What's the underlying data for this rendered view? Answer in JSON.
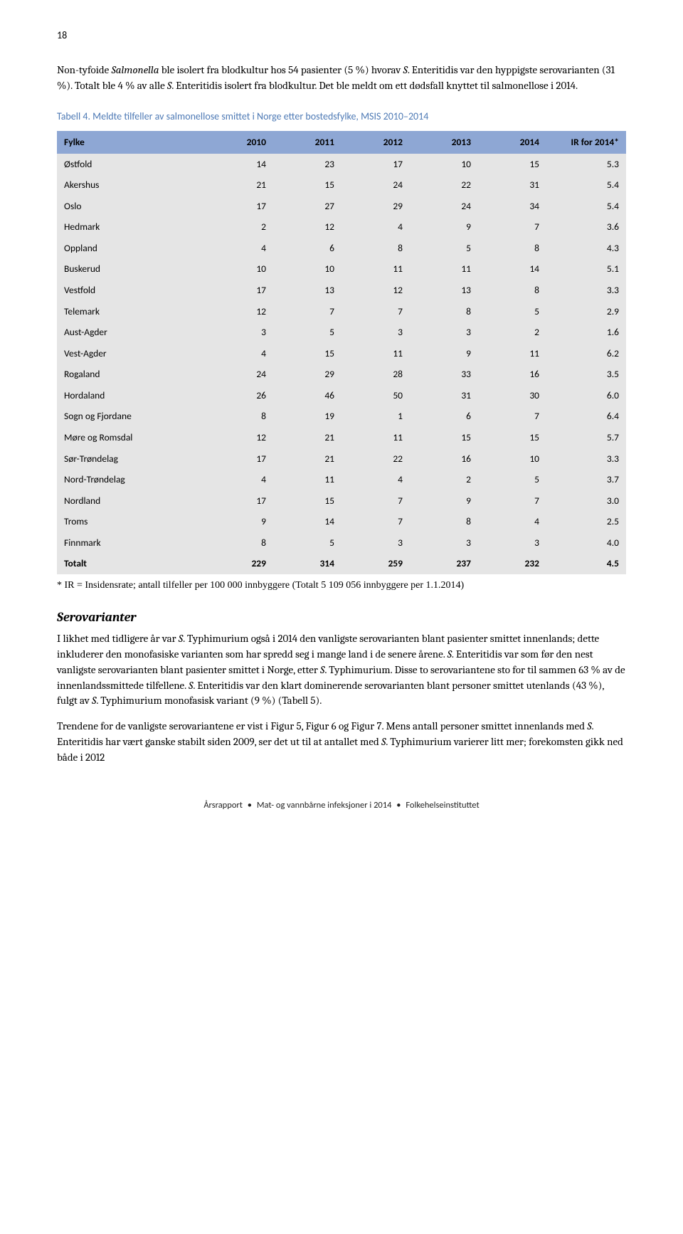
{
  "page_number": "18",
  "intro_html": "Non-tyfoide <i>Salmonella</i> ble isolert fra blodkultur hos 54 pasienter (5 %) hvorav <i>S</i>. Enteritidis var den hyppigste serovarianten (31 %). Totalt ble 4 % av alle <i>S</i>. Enteritidis isolert fra blodkultur. Det ble meldt om ett dødsfall knyttet til salmonellose i 2014.",
  "table_caption": "Tabell 4. Meldte tilfeller av salmonellose smittet i Norge etter bostedsfylke, MSIS 2010–2014",
  "table": {
    "columns": [
      "Fylke",
      "2010",
      "2011",
      "2012",
      "2013",
      "2014",
      "IR for 2014*"
    ],
    "rows": [
      [
        "Østfold",
        "14",
        "23",
        "17",
        "10",
        "15",
        "5.3"
      ],
      [
        "Akershus",
        "21",
        "15",
        "24",
        "22",
        "31",
        "5.4"
      ],
      [
        "Oslo",
        "17",
        "27",
        "29",
        "24",
        "34",
        "5.4"
      ],
      [
        "Hedmark",
        "2",
        "12",
        "4",
        "9",
        "7",
        "3.6"
      ],
      [
        "Oppland",
        "4",
        "6",
        "8",
        "5",
        "8",
        "4.3"
      ],
      [
        "Buskerud",
        "10",
        "10",
        "11",
        "11",
        "14",
        "5.1"
      ],
      [
        "Vestfold",
        "17",
        "13",
        "12",
        "13",
        "8",
        "3.3"
      ],
      [
        "Telemark",
        "12",
        "7",
        "7",
        "8",
        "5",
        "2.9"
      ],
      [
        "Aust-Agder",
        "3",
        "5",
        "3",
        "3",
        "2",
        "1.6"
      ],
      [
        "Vest-Agder",
        "4",
        "15",
        "11",
        "9",
        "11",
        "6.2"
      ],
      [
        "Rogaland",
        "24",
        "29",
        "28",
        "33",
        "16",
        "3.5"
      ],
      [
        "Hordaland",
        "26",
        "46",
        "50",
        "31",
        "30",
        "6.0"
      ],
      [
        "Sogn og Fjordane",
        "8",
        "19",
        "1",
        "6",
        "7",
        "6.4"
      ],
      [
        "Møre og Romsdal",
        "12",
        "21",
        "11",
        "15",
        "15",
        "5.7"
      ],
      [
        "Sør-Trøndelag",
        "17",
        "21",
        "22",
        "16",
        "10",
        "3.3"
      ],
      [
        "Nord-Trøndelag",
        "4",
        "11",
        "4",
        "2",
        "5",
        "3.7"
      ],
      [
        "Nordland",
        "17",
        "15",
        "7",
        "9",
        "7",
        "3.0"
      ],
      [
        "Troms",
        "9",
        "14",
        "7",
        "8",
        "4",
        "2.5"
      ],
      [
        "Finnmark",
        "8",
        "5",
        "3",
        "3",
        "3",
        "4.0"
      ]
    ],
    "total_row": [
      "Totalt",
      "229",
      "314",
      "259",
      "237",
      "232",
      "4.5"
    ],
    "col_widths": [
      "26%",
      "12%",
      "12%",
      "12%",
      "12%",
      "12%",
      "14%"
    ],
    "header_bg": "#8ea7d4",
    "row_bg": "#e5e5e5"
  },
  "footnote": "* IR = Insidensrate; antall tilfeller per 100 000 innbyggere (Totalt 5 109 056 innbyggere per 1.1.2014)",
  "section_heading": "Serovarianter",
  "para2_html": "I likhet med tidligere år var <i>S</i>. Typhimurium også i 2014 den vanligste serovarianten blant pasienter smittet innenlands; dette inkluderer den monofasiske varianten som har spredd seg i mange land i de senere årene. <i>S</i>. Enteritidis var som før den nest vanligste serovarianten blant pasienter smittet i Norge, etter <i>S</i>. Typhimurium. Disse to serovariantene sto for til sammen 63 % av de innenlandssmittede tilfellene. <i>S</i>. Enteritidis var den klart dominerende serovarianten blant personer smittet utenlands (43 %), fulgt av <i>S</i>. Typhimurium monofasisk variant (9 %) (Tabell 5).",
  "para3_html": "Trendene for de vanligste serovariantene er vist i Figur 5, Figur 6 og Figur 7. Mens antall personer smittet innenlands med <i>S</i>. Enteritidis har vært ganske stabilt siden 2009, ser det ut til at antallet med <i>S</i>. Typhimurium varierer litt mer; forekomsten gikk ned både i 2012",
  "footer_parts": [
    "Årsrapport",
    "Mat- og vannbårne infeksjoner i 2014",
    "Folkehelseinstituttet"
  ]
}
